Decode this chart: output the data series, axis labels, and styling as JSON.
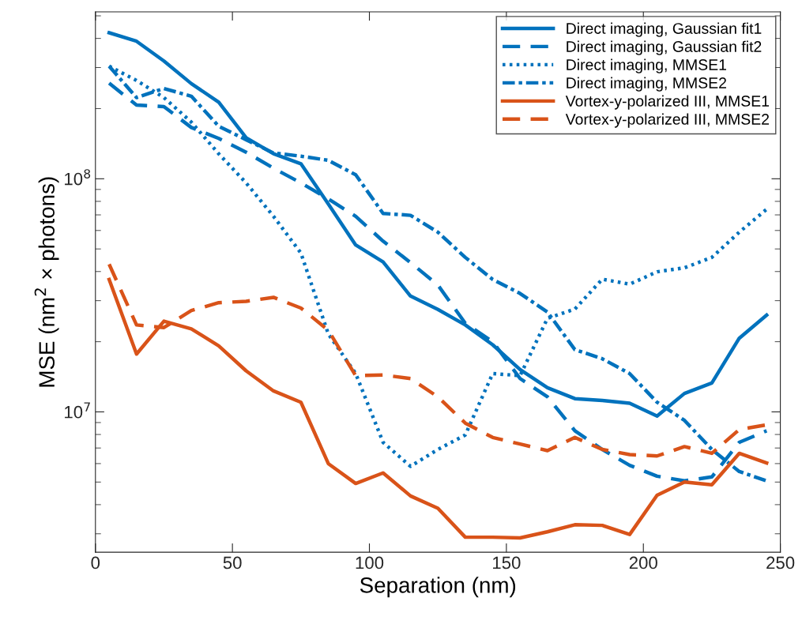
{
  "chart_data": {
    "type": "line",
    "xlabel": "Separation (nm)",
    "ylabel": "MSE (nm$^{2}$ × photons)",
    "x": [
      5,
      15,
      25,
      35,
      45,
      55,
      65,
      75,
      85,
      95,
      105,
      115,
      125,
      135,
      145,
      155,
      165,
      175,
      185,
      195,
      205,
      215,
      225,
      235,
      245
    ],
    "xlim": [
      0,
      250
    ],
    "xticks": [
      0,
      50,
      100,
      150,
      200,
      250
    ],
    "log": "y",
    "ylim": [
      2500000,
      520000000
    ],
    "yticks": [
      {
        "value": 10000000,
        "label": "10$^{7}$"
      },
      {
        "value": 100000000,
        "label": "10$^{8}$"
      }
    ],
    "grid": false,
    "legend": "top right",
    "marker": "none",
    "series": [
      {
        "name": "Direct imaging, Gaussian fit1",
        "color": "#0072bd",
        "line_style": "solid",
        "values": [
          423000000,
          389000000,
          320000000,
          256000000,
          213000000,
          150000000,
          128000000,
          116000000,
          78000000,
          52000000,
          44000000,
          31400000,
          27500000,
          23600000,
          19400000,
          15200000,
          12700000,
          11400000,
          11200000,
          10900000,
          9600000,
          12000000,
          13300000,
          20700000,
          26000000
        ]
      },
      {
        "name": "Direct imaging, Gaussian fit2",
        "color": "#0072bd",
        "line_style": "dashed",
        "values": [
          257000000,
          207000000,
          204000000,
          166000000,
          149000000,
          130000000,
          111000000,
          96000000,
          82000000,
          69000000,
          54000000,
          43700000,
          35000000,
          24000000,
          20000000,
          13900000,
          11600000,
          8300000,
          6900000,
          5900000,
          5300000,
          5060000,
          5260000,
          7400000,
          8300000
        ]
      },
      {
        "name": "Direct imaging, MMSE1",
        "color": "#0072bd",
        "line_style": "dotted",
        "values": [
          304000000,
          264000000,
          223000000,
          175000000,
          128000000,
          96000000,
          69000000,
          48000000,
          21600000,
          14600000,
          7400000,
          5840000,
          6900000,
          7960000,
          14600000,
          14300000,
          25200000,
          27600000,
          37100000,
          35300000,
          39900000,
          41500000,
          46000000,
          59000000,
          74000000
        ]
      },
      {
        "name": "Direct imaging, MMSE2",
        "color": "#0072bd",
        "line_style": "dashdot",
        "values": [
          304000000,
          223000000,
          244000000,
          226000000,
          168000000,
          147000000,
          129000000,
          125000000,
          120000000,
          104000000,
          71000000,
          69700000,
          59000000,
          46000000,
          37000000,
          32200000,
          26800000,
          18500000,
          16900000,
          14600000,
          11000000,
          9200000,
          6900000,
          5550000,
          5060000
        ]
      },
      {
        "name": "Vortex-y-polarized III, MMSE1",
        "color": "#d95319",
        "line_style": "solid",
        "values": [
          37000000,
          17700000,
          24500000,
          22700000,
          19200000,
          15000000,
          12300000,
          11000000,
          6000000,
          4930000,
          5470000,
          4360000,
          3860000,
          2900000,
          2900000,
          2880000,
          3060000,
          3280000,
          3260000,
          2980000,
          4390000,
          5000000,
          4870000,
          6640000,
          6040000
        ]
      },
      {
        "name": "Vortex-y-polarized III, MMSE2",
        "color": "#d95319",
        "line_style": "dashed",
        "values": [
          43000000,
          23600000,
          23000000,
          27200000,
          29400000,
          29800000,
          31000000,
          27900000,
          22400000,
          14300000,
          14400000,
          13900000,
          11600000,
          8950000,
          7770000,
          7280000,
          6820000,
          7770000,
          6900000,
          6560000,
          6470000,
          7100000,
          6640000,
          8400000,
          8800000
        ]
      }
    ]
  }
}
